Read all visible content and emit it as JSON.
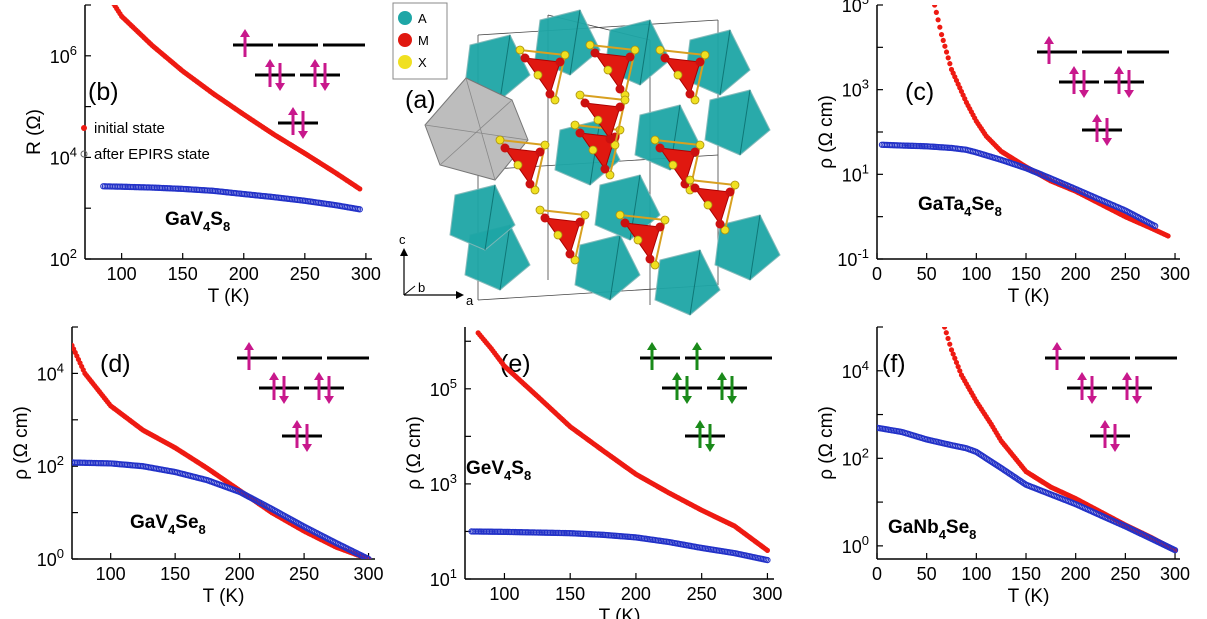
{
  "colors": {
    "red": "#ee1a12",
    "blue": "#2332c8",
    "magenta": "#c8188c",
    "green": "#1a8a1a",
    "teal": "#1ea6a6",
    "grey": "#bdbdbd",
    "gold": "#d8a020",
    "yellow": "#f0e020"
  },
  "chart_data": [
    {
      "id": "b",
      "panel_label": "(b)",
      "type": "scatter",
      "yscale": "log",
      "xlabel": "T (K)",
      "ylabel": "R (Ω)",
      "xlim": [
        70,
        305
      ],
      "ylim_log10": [
        2,
        7
      ],
      "xticks": [
        100,
        150,
        200,
        250,
        300
      ],
      "ytick_labels": [
        {
          "exp": 2,
          "label": "10",
          "sup": "2"
        },
        {
          "exp": 4,
          "label": "10",
          "sup": "4"
        },
        {
          "exp": 6,
          "label": "10",
          "sup": "6"
        }
      ],
      "compound": {
        "pre": "GaV",
        "s1": "4",
        "mid": "S",
        "s2": "8"
      },
      "legend": {
        "initial": "initial state",
        "after": "after EPIRS state"
      },
      "levels": "magenta",
      "top_arrows": 1,
      "series": [
        {
          "kind": "initial",
          "x": [
            92,
            100,
            125,
            150,
            175,
            200,
            225,
            250,
            275,
            295
          ],
          "y": [
            12000000,
            6000000,
            1600000,
            500000,
            180000,
            70000,
            28000,
            12000,
            5000,
            2400
          ]
        },
        {
          "kind": "after",
          "x": [
            85,
            100,
            125,
            150,
            175,
            200,
            225,
            250,
            275,
            295
          ],
          "y": [
            2700,
            2650,
            2550,
            2400,
            2200,
            1900,
            1650,
            1400,
            1150,
            950
          ]
        }
      ]
    },
    {
      "id": "c",
      "panel_label": "(c)",
      "type": "scatter",
      "yscale": "log",
      "xlabel": "T (K)",
      "ylabel": "ρ (Ω cm)",
      "xlim": [
        0,
        305
      ],
      "ylim_log10": [
        -1,
        5
      ],
      "xticks": [
        0,
        50,
        100,
        150,
        200,
        250,
        300
      ],
      "ytick_labels": [
        {
          "exp": -1,
          "label": "10",
          "sup": "-1"
        },
        {
          "exp": 1,
          "label": "10",
          "sup": "1"
        },
        {
          "exp": 3,
          "label": "10",
          "sup": "3"
        },
        {
          "exp": 5,
          "label": "10",
          "sup": "5"
        }
      ],
      "compound": {
        "pre": "GaTa",
        "s1": "4",
        "mid": "Se",
        "s2": "8"
      },
      "levels": "magenta",
      "top_arrows": 1,
      "series": [
        {
          "kind": "initial",
          "x": [
            58,
            65,
            75,
            90,
            100,
            110,
            125,
            150,
            175,
            200,
            225,
            250,
            275,
            293
          ],
          "y": [
            100000,
            20000,
            3000,
            500,
            180,
            80,
            35,
            15,
            7,
            4,
            2,
            1,
            0.55,
            0.35
          ]
        },
        {
          "kind": "after",
          "x": [
            5,
            25,
            50,
            75,
            90,
            100,
            125,
            150,
            175,
            200,
            225,
            250,
            280
          ],
          "y": [
            50,
            48,
            46,
            42,
            38,
            33,
            22,
            14,
            8,
            4.5,
            2.5,
            1.4,
            0.6
          ]
        }
      ]
    },
    {
      "id": "d",
      "panel_label": "(d)",
      "type": "scatter",
      "yscale": "log",
      "xlabel": "T (K)",
      "ylabel": "ρ (Ω cm)",
      "xlim": [
        70,
        305
      ],
      "ylim_log10": [
        0,
        5
      ],
      "xticks": [
        100,
        150,
        200,
        250,
        300
      ],
      "ytick_labels": [
        {
          "exp": 0,
          "label": "10",
          "sup": "0"
        },
        {
          "exp": 2,
          "label": "10",
          "sup": "2"
        },
        {
          "exp": 4,
          "label": "10",
          "sup": "4"
        }
      ],
      "compound": {
        "pre": "GaV",
        "s1": "4",
        "mid": "Se",
        "s2": "8"
      },
      "levels": "magenta",
      "top_arrows": 1,
      "series": [
        {
          "kind": "initial",
          "x": [
            70,
            80,
            100,
            125,
            150,
            175,
            200,
            225,
            250,
            275,
            300
          ],
          "y": [
            40000,
            10000,
            2000,
            600,
            250,
            90,
            30,
            10,
            4,
            1.8,
            1
          ]
        },
        {
          "kind": "after",
          "x": [
            70,
            100,
            125,
            150,
            175,
            200,
            225,
            250,
            275,
            300
          ],
          "y": [
            120,
            115,
            100,
            75,
            50,
            28,
            12,
            5,
            2.2,
            1
          ]
        }
      ]
    },
    {
      "id": "e",
      "panel_label": "(e)",
      "type": "scatter",
      "yscale": "log",
      "xlabel": "T (K)",
      "ylabel": "ρ (Ω cm)",
      "xlim": [
        70,
        305
      ],
      "ylim_log10": [
        1,
        6.3
      ],
      "xticks": [
        100,
        150,
        200,
        250,
        300
      ],
      "ytick_labels": [
        {
          "exp": 1,
          "label": "10",
          "sup": "1"
        },
        {
          "exp": 3,
          "label": "10",
          "sup": "3"
        },
        {
          "exp": 5,
          "label": "10",
          "sup": "5"
        }
      ],
      "compound": {
        "pre": "GeV",
        "s1": "4",
        "mid": "S",
        "s2": "8"
      },
      "levels": "green",
      "top_arrows": 2,
      "series": [
        {
          "kind": "initial",
          "x": [
            80,
            90,
            100,
            125,
            150,
            175,
            200,
            225,
            250,
            275,
            300
          ],
          "y": [
            1500000,
            700000,
            300000,
            70000,
            16000,
            5000,
            1600,
            650,
            280,
            130,
            40
          ]
        },
        {
          "kind": "after",
          "x": [
            75,
            100,
            125,
            150,
            175,
            200,
            225,
            250,
            275,
            300
          ],
          "y": [
            100,
            98,
            95,
            92,
            85,
            75,
            60,
            45,
            35,
            25
          ]
        }
      ]
    },
    {
      "id": "f",
      "panel_label": "(f)",
      "type": "scatter",
      "yscale": "log",
      "xlabel": "T (K)",
      "ylabel": "ρ (Ω cm)",
      "xlim": [
        0,
        305
      ],
      "ylim_log10": [
        -0.3,
        5
      ],
      "xticks": [
        0,
        50,
        100,
        150,
        200,
        250,
        300
      ],
      "ytick_labels": [
        {
          "exp": 0,
          "label": "10",
          "sup": "0"
        },
        {
          "exp": 2,
          "label": "10",
          "sup": "2"
        },
        {
          "exp": 4,
          "label": "10",
          "sup": "4"
        }
      ],
      "compound": {
        "pre": "GaNb",
        "s1": "4",
        "mid": "Se",
        "s2": "8"
      },
      "levels": "magenta",
      "top_arrows": 1,
      "series": [
        {
          "kind": "initial",
          "x": [
            68,
            75,
            85,
            100,
            115,
            125,
            150,
            175,
            200,
            225,
            250,
            275,
            300
          ],
          "y": [
            100000,
            30000,
            8000,
            2000,
            600,
            250,
            50,
            22,
            12,
            6,
            3,
            1.6,
            0.8
          ]
        },
        {
          "kind": "after",
          "x": [
            0,
            25,
            50,
            75,
            90,
            100,
            125,
            150,
            175,
            200,
            225,
            250,
            275,
            300
          ],
          "y": [
            500,
            400,
            270,
            200,
            170,
            140,
            60,
            25,
            15,
            9,
            5,
            2.8,
            1.5,
            0.8
          ]
        }
      ]
    }
  ],
  "crystal": {
    "panel_label": "(a)",
    "legend": [
      {
        "label": "A",
        "color": "teal"
      },
      {
        "label": "M",
        "color": "red"
      },
      {
        "label": "X",
        "color": "yellow"
      }
    ],
    "axes": {
      "c": "c",
      "b": "b",
      "a": "a"
    }
  }
}
